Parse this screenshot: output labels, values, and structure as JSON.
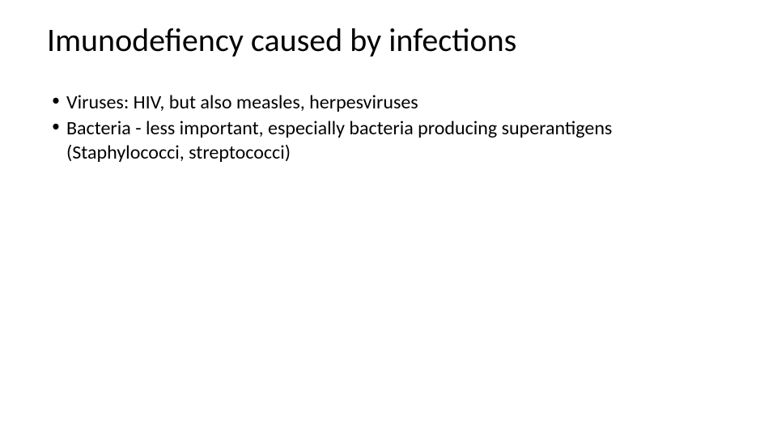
{
  "slide": {
    "title": "Imunodefiency caused by infections",
    "title_fontsize": 40,
    "title_color": "#000000",
    "bullets": [
      {
        "text": "Viruses: HIV, but also measles, herpesviruses"
      },
      {
        "text": "Bacteria - less important, especially bacteria producing superantigens (Staphylococci, streptococci)"
      }
    ],
    "bullet_fontsize": 24,
    "bullet_color": "#000000",
    "background_color": "#ffffff",
    "font_family": "Calibri"
  }
}
